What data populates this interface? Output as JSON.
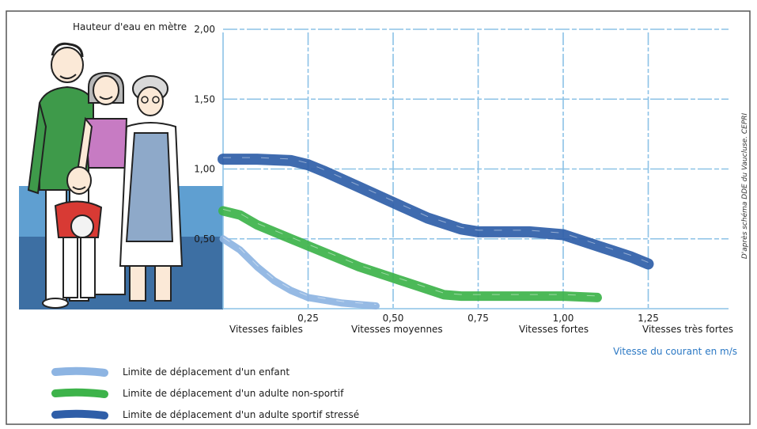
{
  "chart_data": {
    "type": "line",
    "ylabel": "Hauteur d'eau en mètre",
    "xlabel": "Vitesse du courant en m/s",
    "credit": "D'après schéma DDE du Vaucluse. CEPRI",
    "xlim": [
      0,
      1.5
    ],
    "ylim": [
      0,
      2.0
    ],
    "y_ticks": [
      "0,50",
      "1,00",
      "1,50",
      "2,00"
    ],
    "x_ticks": [
      "0,25",
      "0,50",
      "0,75",
      "1,00",
      "1,25"
    ],
    "speed_zones": [
      "Vitesses faibles",
      "Vitesses moyennes",
      "Vitesses fortes",
      "Vitesses très fortes"
    ],
    "grid": true,
    "legend_position": "bottom-left",
    "series": [
      {
        "name": "Limite de déplacement d'un enfant",
        "color": "#8db4e2",
        "x": [
          0,
          0.05,
          0.1,
          0.15,
          0.2,
          0.25,
          0.3,
          0.35,
          0.4,
          0.45
        ],
        "y": [
          0.5,
          0.42,
          0.3,
          0.2,
          0.13,
          0.08,
          0.06,
          0.04,
          0.03,
          0.02
        ]
      },
      {
        "name": "Limite de déplacement d'un adulte non-sportif",
        "color": "#3db34a",
        "x": [
          0,
          0.05,
          0.1,
          0.2,
          0.3,
          0.4,
          0.5,
          0.6,
          0.65,
          0.7,
          0.8,
          0.9,
          1.0,
          1.1
        ],
        "y": [
          0.7,
          0.67,
          0.6,
          0.5,
          0.4,
          0.3,
          0.22,
          0.14,
          0.1,
          0.09,
          0.09,
          0.09,
          0.09,
          0.08
        ]
      },
      {
        "name": "Limite de déplacement d'un adulte sportif stressé",
        "color": "#2f5ea8",
        "x": [
          0,
          0.1,
          0.2,
          0.25,
          0.3,
          0.4,
          0.5,
          0.6,
          0.7,
          0.75,
          0.8,
          0.9,
          1.0,
          1.1,
          1.2,
          1.25
        ],
        "y": [
          1.07,
          1.07,
          1.06,
          1.03,
          0.98,
          0.87,
          0.76,
          0.65,
          0.57,
          0.55,
          0.55,
          0.55,
          0.53,
          0.45,
          0.37,
          0.32
        ]
      }
    ]
  }
}
